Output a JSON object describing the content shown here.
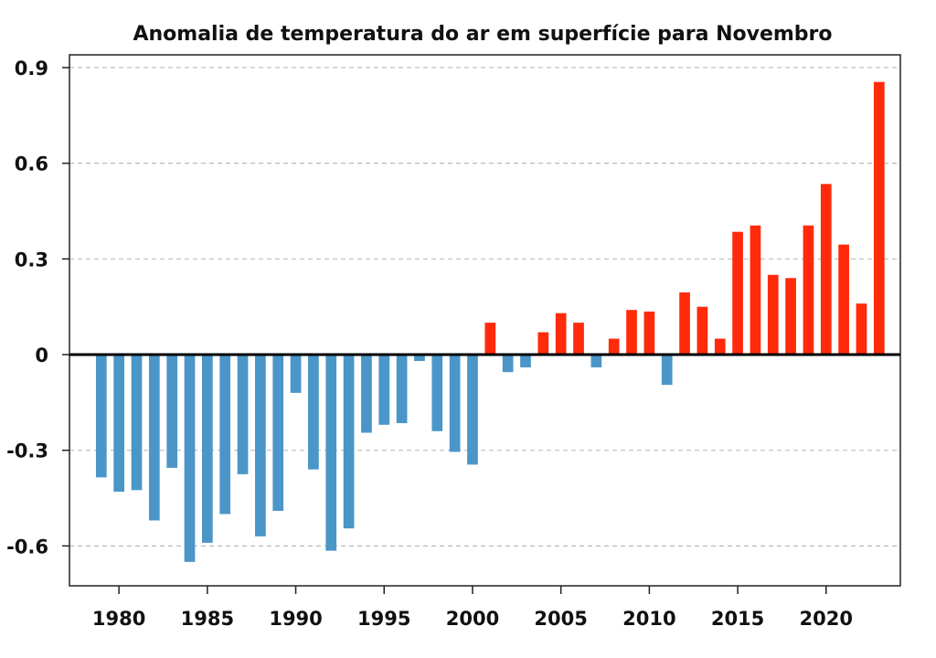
{
  "chart_data": {
    "type": "bar",
    "title": "Anomalia de temperatura do ar em superfície para Novembro",
    "xlabel": "",
    "ylabel": "",
    "x": [
      1979,
      1980,
      1981,
      1982,
      1983,
      1984,
      1985,
      1986,
      1987,
      1988,
      1989,
      1990,
      1991,
      1992,
      1993,
      1994,
      1995,
      1996,
      1997,
      1998,
      1999,
      2000,
      2001,
      2002,
      2003,
      2004,
      2005,
      2006,
      2007,
      2008,
      2009,
      2010,
      2011,
      2012,
      2013,
      2014,
      2015,
      2016,
      2017,
      2018,
      2019,
      2020,
      2021,
      2022,
      2023
    ],
    "values": [
      -0.385,
      -0.43,
      -0.425,
      -0.52,
      -0.355,
      -0.65,
      -0.59,
      -0.5,
      -0.375,
      -0.57,
      -0.49,
      -0.12,
      -0.36,
      -0.615,
      -0.545,
      -0.245,
      -0.22,
      -0.215,
      -0.02,
      -0.24,
      -0.305,
      -0.345,
      0.1,
      -0.055,
      -0.04,
      0.07,
      0.13,
      0.1,
      -0.04,
      0.05,
      0.14,
      0.135,
      -0.095,
      0.195,
      0.15,
      0.05,
      0.385,
      0.405,
      0.25,
      0.24,
      0.405,
      0.535,
      0.345,
      0.16,
      0.855
    ],
    "xlim": [
      1977.2,
      2024.2
    ],
    "ylim": [
      -0.725,
      0.94
    ],
    "x_ticks": [
      1980,
      1985,
      1990,
      1995,
      2000,
      2005,
      2010,
      2015,
      2020
    ],
    "x_tick_labels": [
      "1980",
      "1985",
      "1990",
      "1995",
      "2000",
      "2005",
      "2010",
      "2015",
      "2020"
    ],
    "y_ticks": [
      0.9,
      0.6,
      0.3,
      0,
      -0.3,
      -0.6
    ],
    "y_tick_labels": [
      "0.9",
      "0.6",
      "0.3",
      "0",
      "-0.3",
      "-0.6"
    ],
    "grid": true,
    "colors": {
      "positive": "#ff2a0a",
      "negative": "#4a96c8",
      "zero_line": "#000000",
      "grid": "#bbbbbb"
    }
  }
}
